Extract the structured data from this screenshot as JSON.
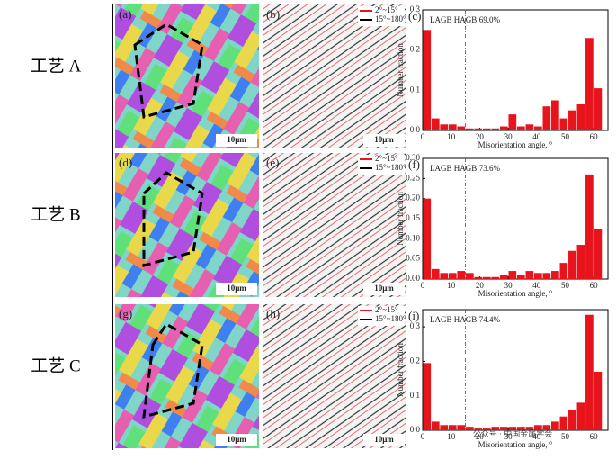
{
  "figure": {
    "rows": [
      {
        "label": "工艺 A",
        "map_panel": "(a)",
        "boundary_panel": "(b)"
      },
      {
        "label": "工艺 B",
        "map_panel": "(d)",
        "boundary_panel": "(e)"
      },
      {
        "label": "工艺 C",
        "map_panel": "(g)",
        "boundary_panel": "(h)"
      }
    ],
    "scale_bar": "10μm",
    "boundary_legend": [
      "2°~15°",
      "15°~180°"
    ],
    "watermark": "公众号 · 中国金属学会"
  },
  "chart_data": [
    {
      "type": "histogram",
      "panel": "(c)",
      "annotation": "LAGB HAGB:69.0%",
      "xlabel": "Misorientation angle, °",
      "ylabel": "Number fraction",
      "color": "#e8141b",
      "threshold": 15,
      "bins": [
        0,
        3,
        6,
        9,
        12,
        15,
        18,
        21,
        24,
        27,
        30,
        33,
        36,
        39,
        42,
        45,
        48,
        51,
        54,
        57,
        60,
        63
      ],
      "values": [
        0.25,
        0.03,
        0.015,
        0.015,
        0.01,
        0.005,
        0.005,
        0.005,
        0.005,
        0.01,
        0.04,
        0.01,
        0.015,
        0.01,
        0.06,
        0.075,
        0.03,
        0.05,
        0.065,
        0.23,
        0.105
      ],
      "xlim": [
        0,
        65
      ],
      "xticks": [
        0,
        10,
        20,
        30,
        40,
        50,
        60
      ],
      "ylim": [
        0,
        0.3
      ],
      "yticks": [
        {
          "value": 0,
          "label": "0.0"
        },
        0.1,
        0.2,
        0.3
      ]
    },
    {
      "type": "histogram",
      "panel": "(f)",
      "annotation": "LAGB HAGB:73.6%",
      "xlabel": "Misorientation angle, °",
      "ylabel": "Number fraction",
      "color": "#e8141b",
      "threshold": 15,
      "bins": [
        0,
        3,
        6,
        9,
        12,
        15,
        18,
        21,
        24,
        27,
        30,
        33,
        36,
        39,
        42,
        45,
        48,
        51,
        54,
        57,
        60,
        63
      ],
      "values": [
        0.2,
        0.025,
        0.015,
        0.015,
        0.02,
        0.015,
        0.005,
        0.005,
        0.005,
        0.01,
        0.02,
        0.01,
        0.02,
        0.015,
        0.015,
        0.02,
        0.04,
        0.07,
        0.085,
        0.26,
        0.125
      ],
      "xlim": [
        0,
        65
      ],
      "xticks": [
        0,
        10,
        20,
        30,
        40,
        50,
        60
      ],
      "ylim": [
        0,
        0.3
      ],
      "yticks": [
        {
          "value": 0,
          "label": "0.00"
        },
        {
          "value": 0.05,
          "label": "0.05"
        },
        {
          "value": 0.1,
          "label": "0.10"
        },
        {
          "value": 0.15,
          "label": "0.15"
        },
        {
          "value": 0.2,
          "label": "0.20"
        },
        {
          "value": 0.25,
          "label": "0.25"
        },
        {
          "value": 0.3,
          "label": "0.30"
        }
      ]
    },
    {
      "type": "histogram",
      "panel": "(i)",
      "annotation": "LAGB HAGB:74.4%",
      "xlabel": "Misorientation angle, °",
      "ylabel": "Number fraction",
      "color": "#e8141b",
      "threshold": 15,
      "bins": [
        0,
        3,
        6,
        9,
        12,
        15,
        18,
        21,
        24,
        27,
        30,
        33,
        36,
        39,
        42,
        45,
        48,
        51,
        54,
        57,
        60,
        63
      ],
      "values": [
        0.195,
        0.025,
        0.015,
        0.015,
        0.015,
        0.01,
        0.005,
        0.005,
        0.01,
        0.01,
        0.01,
        0.01,
        0.01,
        0.015,
        0.015,
        0.025,
        0.04,
        0.06,
        0.08,
        0.335,
        0.17
      ],
      "xlim": [
        0,
        65
      ],
      "xticks": [
        0,
        10,
        20,
        30,
        40,
        50,
        60
      ],
      "ylim": [
        0,
        0.35
      ],
      "yticks": [
        {
          "value": 0,
          "label": "0.0"
        },
        0.1,
        0.2,
        0.3
      ]
    }
  ]
}
